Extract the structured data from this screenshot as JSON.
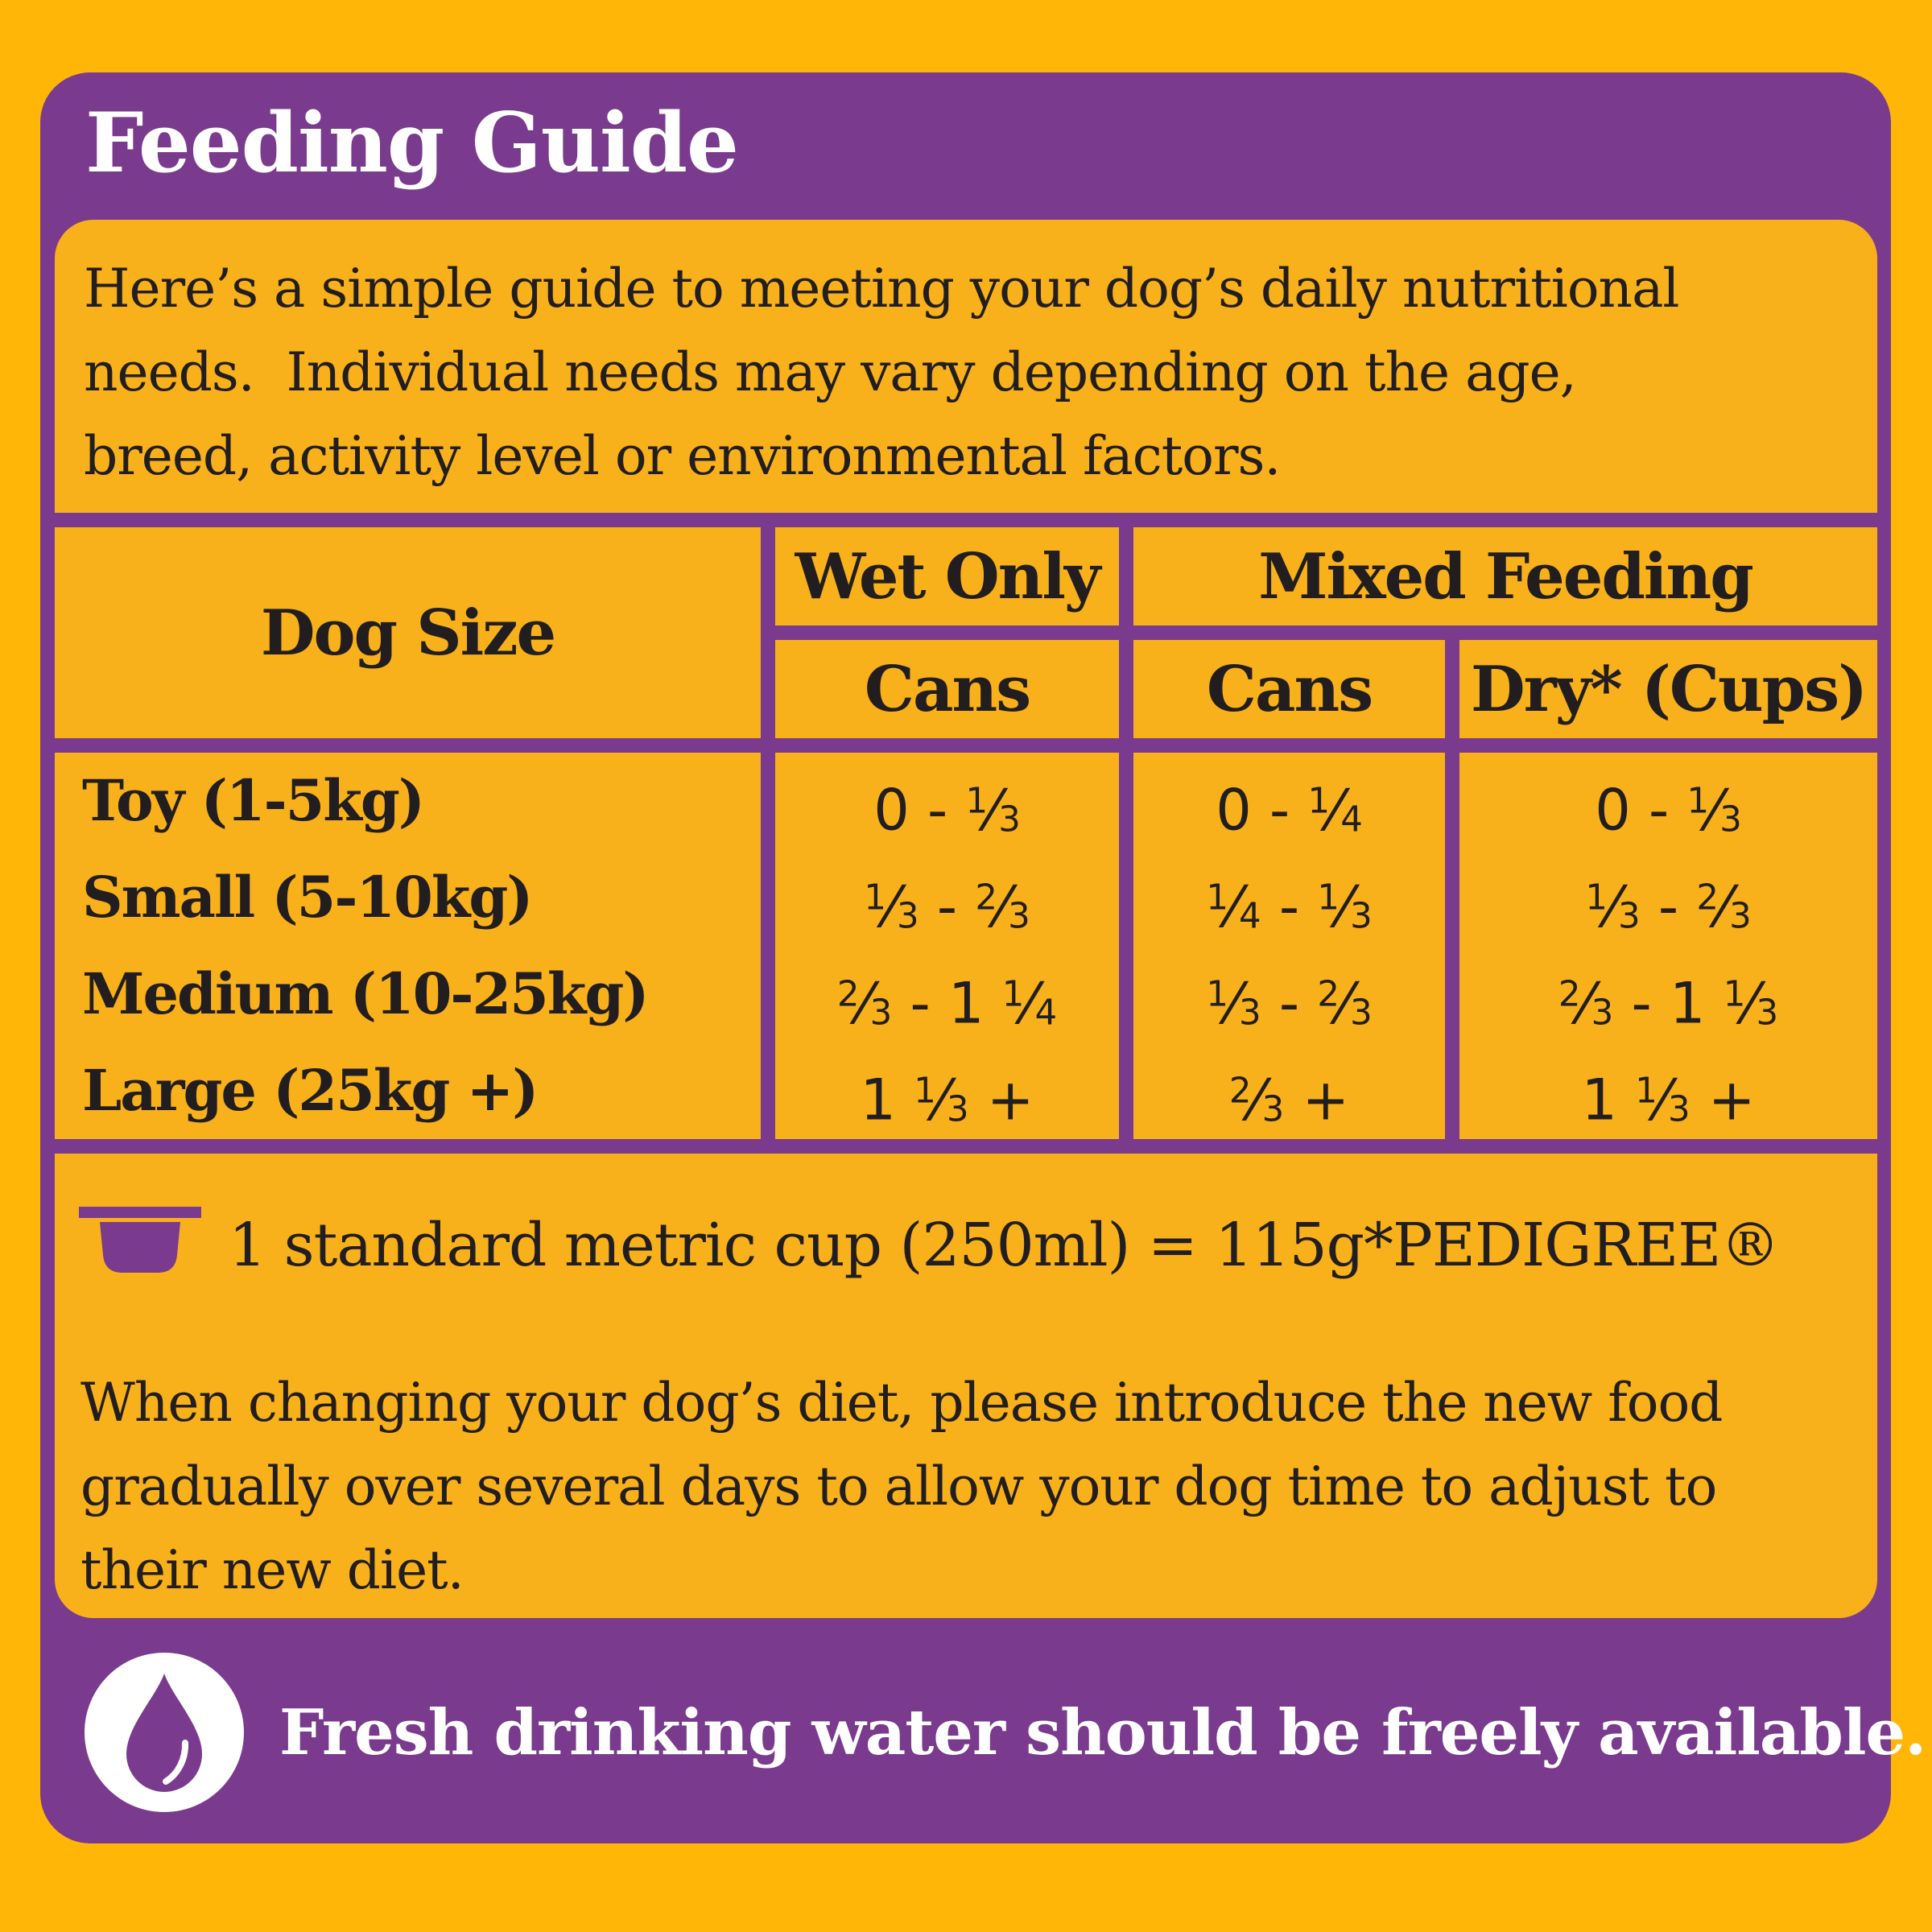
{
  "colors": {
    "outer_yellow": "#FFB606",
    "panel_purple": "#7A3B8E",
    "box_yellow": "#F8B11B",
    "text_dark": "#221E1F",
    "white": "#FFFFFF"
  },
  "title": "Feeding Guide",
  "intro": {
    "lines": [
      "Here’s a simple guide to meeting your dog’s daily nutritional",
      "needs.  Individual needs may vary depending on the age,",
      "breed, activity level or environmental factors."
    ]
  },
  "table": {
    "corner_header": "Dog Size",
    "groups": [
      {
        "label": "Wet Only",
        "sub": [
          "Cans"
        ]
      },
      {
        "label": "Mixed Feeding",
        "sub": [
          "Cans",
          "Dry* (Cups)"
        ]
      }
    ],
    "rows": [
      {
        "size": "Toy (1-5kg)",
        "wet_cans": "0 - ⅓",
        "mixed_cans": "0 - ¼",
        "dry_cups": "0 - ⅓"
      },
      {
        "size": "Small (5-10kg)",
        "wet_cans": "⅓ - ⅔",
        "mixed_cans": "¼ - ⅓",
        "dry_cups": "⅓ - ⅔"
      },
      {
        "size": "Medium (10-25kg)",
        "wet_cans": "⅔ - 1 ¼",
        "mixed_cans": "⅓ - ⅔",
        "dry_cups": "⅔ - 1 ⅓"
      },
      {
        "size": "Large (25kg +)",
        "wet_cans": "1 ⅓ +",
        "mixed_cans": "⅔ +",
        "dry_cups": "1 ⅓ +"
      }
    ]
  },
  "cup_note": {
    "icon": "measuring-cup-icon",
    "text": "1 standard metric cup (250ml) = 115g*PEDIGREE®"
  },
  "paragraph": {
    "lines": [
      "When changing your dog’s diet, please introduce the new food",
      "gradually over several days to allow your dog time to adjust to",
      "their new diet."
    ]
  },
  "water_note": {
    "icon": "water-drop-icon",
    "text": "Fresh drinking water should be freely available."
  }
}
